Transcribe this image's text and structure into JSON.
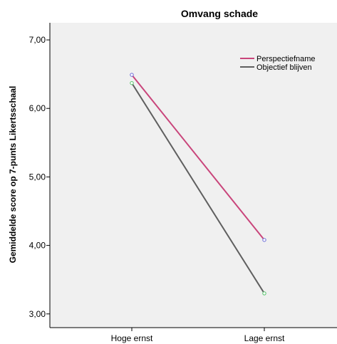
{
  "chart_data": {
    "type": "line",
    "title": "Omvang schade",
    "xlabel": "",
    "ylabel": "Gemiddelde score op 7-punts Likertsschaal",
    "categories": [
      "Hoge ernst",
      "Lage ernst"
    ],
    "ylim": [
      2.8,
      7.25
    ],
    "yticks": [
      3.0,
      4.0,
      5.0,
      6.0,
      7.0
    ],
    "ytick_labels": [
      "3,00",
      "4,00",
      "5,00",
      "6,00",
      "7,00"
    ],
    "grid": false,
    "legend_position": "top-right",
    "plot_background": "#f0f0f0",
    "series": [
      {
        "name": "Perspectiefname",
        "values": [
          6.49,
          4.08
        ],
        "color": "#c9457b",
        "marker_color": "#6a6ad8"
      },
      {
        "name": "Objectief blijven",
        "values": [
          6.37,
          3.3
        ],
        "color": "#5f5f5f",
        "marker_color": "#55c46a"
      }
    ]
  }
}
